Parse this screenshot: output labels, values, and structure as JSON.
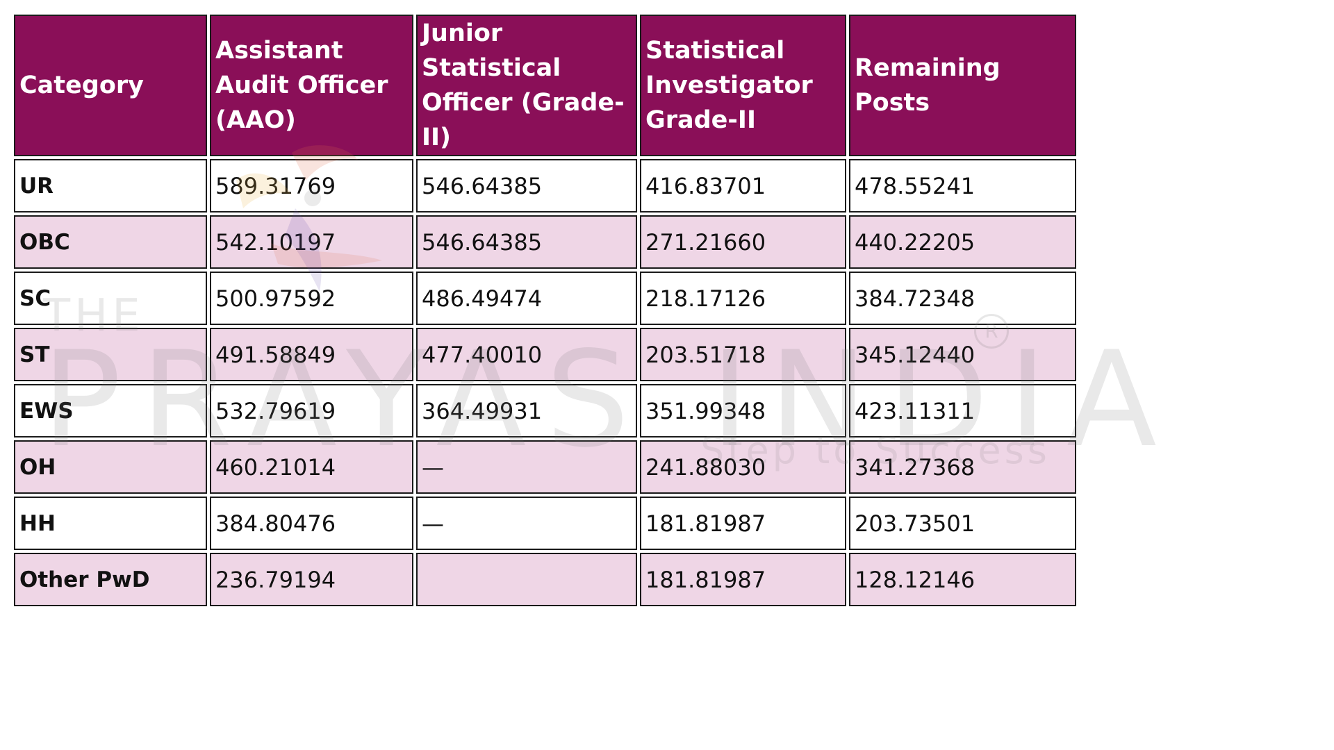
{
  "table": {
    "headers": [
      "Category",
      "Assistant Audit Officer (AAO)",
      "Junior Statistical Officer (Grade-II)",
      "Statistical Investigator Grade-II",
      "Remaining Posts"
    ],
    "rows": [
      {
        "category": "UR",
        "aao": "589.31769",
        "jso": "546.64385",
        "si": "416.83701",
        "remaining": "478.55241"
      },
      {
        "category": "OBC",
        "aao": "542.10197",
        "jso": "546.64385",
        "si": "271.21660",
        "remaining": "440.22205"
      },
      {
        "category": "SC",
        "aao": "500.97592",
        "jso": "486.49474",
        "si": "218.17126",
        "remaining": "384.72348"
      },
      {
        "category": "ST",
        "aao": "491.58849",
        "jso": "477.40010",
        "si": "203.51718",
        "remaining": "345.12440"
      },
      {
        "category": "EWS",
        "aao": "532.79619",
        "jso": "364.49931",
        "si": "351.99348",
        "remaining": "423.11311"
      },
      {
        "category": "OH",
        "aao": "460.21014",
        "jso": "—",
        "si": "241.88030",
        "remaining": "341.27368"
      },
      {
        "category": "HH",
        "aao": "384.80476",
        "jso": "—",
        "si": "181.81987",
        "remaining": "203.73501"
      },
      {
        "category": "Other PwD",
        "aao": "236.79194",
        "jso": "",
        "si": "181.81987",
        "remaining": "128.12146"
      }
    ]
  },
  "watermark": {
    "the": "THE",
    "brand": "PRAYAS INDIA",
    "registered": "R",
    "tagline": "Step to Success",
    "colors": {
      "text": "#787878",
      "accent1": "#e06a4a",
      "accent2": "#6a4fb0",
      "accent3": "#e8b040"
    }
  },
  "colors": {
    "header_bg": "#8a0f58",
    "header_text": "#ffffff",
    "alt_row_bg": "#efd6e6",
    "border": "#1a1a1a"
  }
}
